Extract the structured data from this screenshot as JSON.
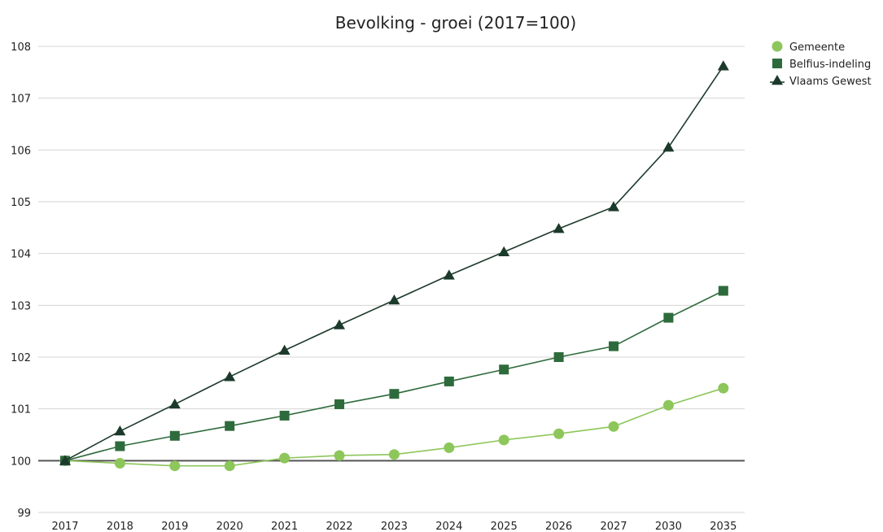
{
  "chart_data": {
    "type": "line",
    "title": "Bevolking - groei (2017=100)",
    "xlabel": "",
    "ylabel": "",
    "categories": [
      "2017",
      "2018",
      "2019",
      "2020",
      "2021",
      "2022",
      "2023",
      "2024",
      "2025",
      "2026",
      "2027",
      "2030",
      "2035"
    ],
    "ylim": [
      99,
      108
    ],
    "yticks": [
      99,
      100,
      101,
      102,
      103,
      104,
      105,
      106,
      107,
      108
    ],
    "grid": true,
    "legend_position": "top-right",
    "series": [
      {
        "name": "Gemeente",
        "marker": "circle",
        "color": "#8dc65a",
        "values": [
          100,
          99.95,
          99.9,
          99.9,
          100.05,
          100.1,
          100.12,
          100.25,
          100.4,
          100.52,
          100.66,
          101.07,
          101.4
        ]
      },
      {
        "name": "Belfius-indeling",
        "marker": "square",
        "color": "#2e6b3c",
        "values": [
          100,
          100.28,
          100.48,
          100.67,
          100.87,
          101.09,
          101.29,
          101.53,
          101.76,
          102.0,
          102.21,
          102.76,
          103.28
        ]
      },
      {
        "name": "Vlaams Gewest",
        "marker": "triangle",
        "color": "#1c3a2b",
        "values": [
          100,
          100.57,
          101.09,
          101.62,
          102.13,
          102.62,
          103.1,
          103.58,
          104.03,
          104.48,
          104.9,
          106.05,
          107.62
        ]
      }
    ]
  }
}
